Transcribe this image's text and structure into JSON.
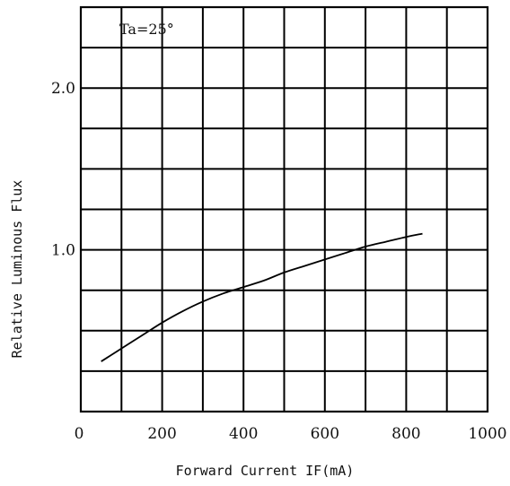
{
  "chart_data": {
    "type": "line",
    "title": "",
    "xlabel": "Forward Current IF(mA)",
    "ylabel": "Relative Luminous Flux",
    "xlim": [
      0,
      1000
    ],
    "ylim": [
      0,
      2.5
    ],
    "x_ticks": [
      0,
      200,
      400,
      600,
      800,
      1000
    ],
    "y_ticks": [
      1.0,
      2.0
    ],
    "x_tick_labels": [
      "0",
      "200",
      "400",
      "600",
      "800",
      "1000"
    ],
    "y_tick_labels": [
      "1.0",
      "2.0"
    ],
    "grid": true,
    "annotation": "Ta=25°",
    "series": [
      {
        "x": [
          50,
          100,
          150,
          200,
          250,
          300,
          350,
          400,
          450,
          500,
          550,
          600,
          650,
          700,
          750,
          800,
          840
        ],
        "y": [
          0.31,
          0.39,
          0.47,
          0.55,
          0.62,
          0.68,
          0.73,
          0.77,
          0.81,
          0.86,
          0.9,
          0.94,
          0.98,
          1.02,
          1.05,
          1.08,
          1.1
        ]
      }
    ]
  }
}
